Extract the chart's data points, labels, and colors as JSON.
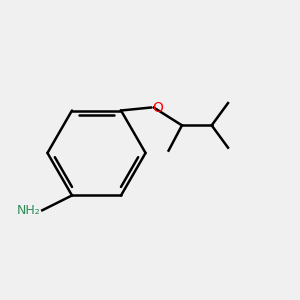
{
  "background_color": "#f0f0f0",
  "bond_color": "#000000",
  "nitrogen_color": "#0000ff",
  "oxygen_color": "#ff0000",
  "nh2_color": "#2e8b57",
  "line_width": 1.8,
  "figsize": [
    3.0,
    3.0
  ],
  "dpi": 100
}
